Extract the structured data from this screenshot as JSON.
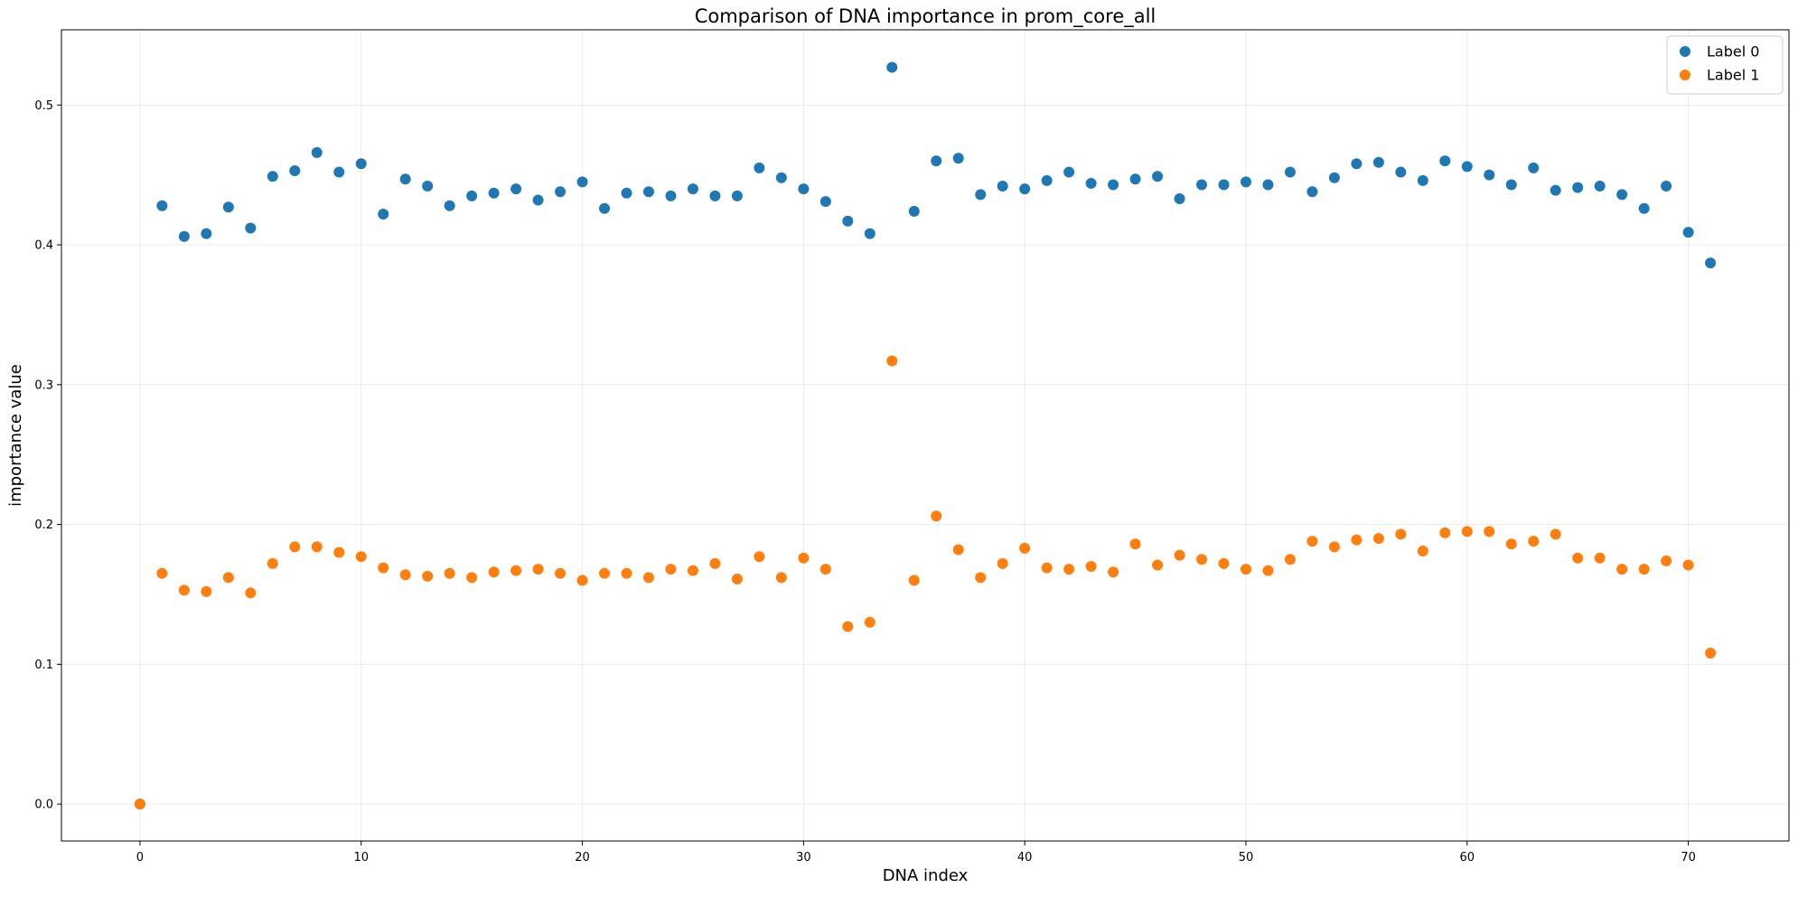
{
  "chart_data": {
    "type": "scatter",
    "title": "Comparison of DNA importance in prom_core_all",
    "xlabel": "DNA index",
    "ylabel": "importance value",
    "xlim": [
      -3.55,
      74.55
    ],
    "ylim": [
      -0.0264,
      0.5538
    ],
    "xticks": [
      0,
      10,
      20,
      30,
      40,
      50,
      60,
      70
    ],
    "yticks": [
      0.0,
      0.1,
      0.2,
      0.3,
      0.4,
      0.5
    ],
    "xtick_labels": [
      "0",
      "10",
      "20",
      "30",
      "40",
      "50",
      "60",
      "70"
    ],
    "ytick_labels": [
      "0.0",
      "0.1",
      "0.2",
      "0.3",
      "0.4",
      "0.5"
    ],
    "grid": true,
    "legend_position": "top-right",
    "x": [
      0,
      1,
      2,
      3,
      4,
      5,
      6,
      7,
      8,
      9,
      10,
      11,
      12,
      13,
      14,
      15,
      16,
      17,
      18,
      19,
      20,
      21,
      22,
      23,
      24,
      25,
      26,
      27,
      28,
      29,
      30,
      31,
      32,
      33,
      34,
      35,
      36,
      37,
      38,
      39,
      40,
      41,
      42,
      43,
      44,
      45,
      46,
      47,
      48,
      49,
      50,
      51,
      52,
      53,
      54,
      55,
      56,
      57,
      58,
      59,
      60,
      61,
      62,
      63,
      64,
      65,
      66,
      67,
      68,
      69,
      70,
      71
    ],
    "series": [
      {
        "name": "Label 0",
        "color": "#1f77b4",
        "values": [
          0.0,
          0.428,
          0.406,
          0.408,
          0.427,
          0.412,
          0.449,
          0.453,
          0.466,
          0.452,
          0.458,
          0.422,
          0.447,
          0.442,
          0.428,
          0.435,
          0.437,
          0.44,
          0.432,
          0.438,
          0.445,
          0.426,
          0.437,
          0.438,
          0.435,
          0.44,
          0.435,
          0.435,
          0.455,
          0.448,
          0.44,
          0.431,
          0.417,
          0.408,
          0.527,
          0.424,
          0.46,
          0.462,
          0.436,
          0.442,
          0.44,
          0.446,
          0.452,
          0.444,
          0.443,
          0.447,
          0.449,
          0.433,
          0.443,
          0.443,
          0.445,
          0.443,
          0.452,
          0.438,
          0.448,
          0.458,
          0.459,
          0.452,
          0.446,
          0.46,
          0.456,
          0.45,
          0.443,
          0.455,
          0.439,
          0.441,
          0.442,
          0.436,
          0.426,
          0.442,
          0.409,
          0.387
        ]
      },
      {
        "name": "Label 1",
        "color": "#ff7f0e",
        "values": [
          0.0,
          0.165,
          0.153,
          0.152,
          0.162,
          0.151,
          0.172,
          0.184,
          0.184,
          0.18,
          0.177,
          0.169,
          0.164,
          0.163,
          0.165,
          0.162,
          0.166,
          0.167,
          0.168,
          0.165,
          0.16,
          0.165,
          0.165,
          0.162,
          0.168,
          0.167,
          0.172,
          0.161,
          0.177,
          0.162,
          0.176,
          0.168,
          0.127,
          0.13,
          0.317,
          0.16,
          0.206,
          0.182,
          0.162,
          0.172,
          0.183,
          0.169,
          0.168,
          0.17,
          0.166,
          0.186,
          0.171,
          0.178,
          0.175,
          0.172,
          0.168,
          0.167,
          0.175,
          0.188,
          0.184,
          0.189,
          0.19,
          0.193,
          0.181,
          0.194,
          0.195,
          0.195,
          0.186,
          0.188,
          0.193,
          0.176,
          0.176,
          0.168,
          0.168,
          0.174,
          0.171,
          0.108
        ]
      }
    ]
  }
}
